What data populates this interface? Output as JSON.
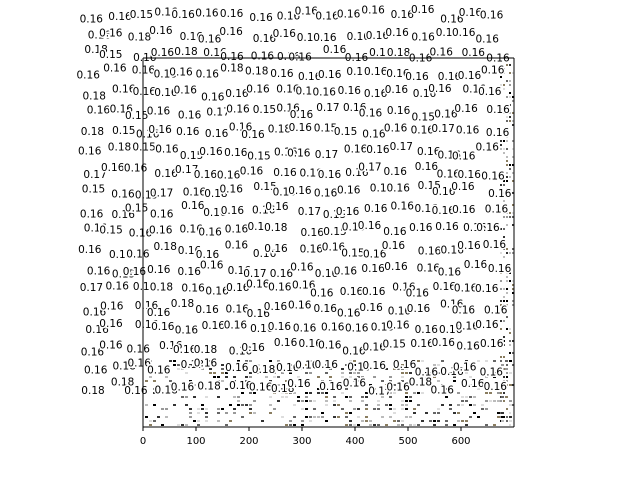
{
  "chart_data": {
    "type": "heatmap",
    "title": "",
    "xlabel": "",
    "ylabel": "",
    "xlim": [
      0,
      700
    ],
    "ylim": [
      0,
      700
    ],
    "x_ticks": [
      "0",
      "100",
      "200",
      "300",
      "400",
      "500",
      "600"
    ],
    "x_tick_values": [
      0,
      100,
      200,
      300,
      400,
      500,
      600
    ],
    "grid": false,
    "colormap": "grayscale",
    "label_values": [
      0.15,
      0.16,
      0.17,
      0.18
    ],
    "label_grid": {
      "columns": 18,
      "rows": 20,
      "values": [
        [
          0.16,
          0.16,
          0.15,
          0.16,
          0.16,
          0.16,
          0.16,
          0.16,
          0.16,
          0.16,
          0.16,
          0.16,
          0.16,
          0.16,
          0.16,
          0.16,
          0.16,
          0.16
        ],
        [
          0.16,
          0.16,
          0.18,
          0.16,
          0.16,
          0.16,
          0.16,
          0.16,
          0.16,
          0.16,
          0.16,
          0.16,
          0.16,
          0.16,
          0.16,
          0.16,
          0.16,
          0.16
        ],
        [
          0.18,
          0.15,
          0.16,
          0.16,
          0.18,
          0.16,
          0.16,
          0.16,
          0.16,
          0.16,
          0.16,
          0.16,
          0.16,
          0.18,
          0.16,
          0.16,
          0.16,
          0.16
        ],
        [
          0.16,
          0.16,
          0.16,
          0.18,
          0.16,
          0.16,
          0.18,
          0.18,
          0.16,
          0.16,
          0.16,
          0.16,
          0.16,
          0.16,
          0.16,
          0.16,
          0.16,
          0.16
        ],
        [
          0.18,
          0.16,
          0.16,
          0.16,
          0.16,
          0.16,
          0.16,
          0.16,
          0.16,
          0.16,
          0.16,
          0.16,
          0.16,
          0.16,
          0.16,
          0.16,
          0.16,
          0.16
        ],
        [
          0.16,
          0.16,
          0.15,
          0.16,
          0.16,
          0.17,
          0.16,
          0.15,
          0.16,
          0.16,
          0.17,
          0.16,
          0.16,
          0.16,
          0.15,
          0.16,
          0.16,
          0.16
        ],
        [
          0.18,
          0.15,
          0.16,
          0.16,
          0.16,
          0.16,
          0.16,
          0.16,
          0.18,
          0.16,
          0.15,
          0.15,
          0.16,
          0.16,
          0.16,
          0.17,
          0.16,
          0.16
        ],
        [
          0.16,
          0.18,
          0.15,
          0.16,
          0.15,
          0.16,
          0.16,
          0.15,
          0.16,
          0.16,
          0.17,
          0.16,
          0.16,
          0.17,
          0.16,
          0.16,
          0.16,
          0.16
        ],
        [
          0.17,
          0.16,
          0.16,
          0.16,
          0.17,
          0.16,
          0.16,
          0.16,
          0.16,
          0.18,
          0.16,
          0.16,
          0.17,
          0.16,
          0.16,
          0.16,
          0.16,
          0.16
        ],
        [
          0.15,
          0.16,
          0.15,
          0.17,
          0.16,
          0.18,
          0.16,
          0.15,
          0.16,
          0.16,
          0.16,
          0.16,
          0.16,
          0.16,
          0.15,
          0.16,
          0.16,
          0.16
        ],
        [
          0.16,
          0.16,
          0.15,
          0.16,
          0.16,
          0.16,
          0.16,
          0.16,
          0.16,
          0.17,
          0.15,
          0.16,
          0.16,
          0.16,
          0.16,
          0.16,
          0.16,
          0.16
        ],
        [
          0.16,
          0.15,
          0.16,
          0.16,
          0.16,
          0.16,
          0.16,
          0.16,
          0.18,
          0.16,
          0.15,
          0.16,
          0.16,
          0.16,
          0.16,
          0.16,
          0.16,
          0.16
        ],
        [
          0.16,
          0.15,
          0.16,
          0.18,
          0.16,
          0.16,
          0.16,
          0.16,
          0.16,
          0.16,
          0.16,
          0.15,
          0.16,
          0.16,
          0.16,
          0.16,
          0.16,
          0.16
        ],
        [
          0.16,
          0.15,
          0.16,
          0.16,
          0.16,
          0.16,
          0.16,
          0.17,
          0.16,
          0.16,
          0.16,
          0.16,
          0.16,
          0.16,
          0.16,
          0.16,
          0.16,
          0.16
        ],
        [
          0.17,
          0.16,
          0.16,
          0.18,
          0.16,
          0.16,
          0.16,
          0.16,
          0.16,
          0.16,
          0.16,
          0.16,
          0.16,
          0.16,
          0.16,
          0.16,
          0.16,
          0.16
        ],
        [
          0.16,
          0.16,
          0.16,
          0.16,
          0.18,
          0.16,
          0.16,
          0.16,
          0.16,
          0.16,
          0.16,
          0.16,
          0.16,
          0.16,
          0.16,
          0.16,
          0.16,
          0.16
        ],
        [
          0.16,
          0.16,
          0.16,
          0.16,
          0.16,
          0.16,
          0.16,
          0.16,
          0.16,
          0.16,
          0.16,
          0.16,
          0.16,
          0.16,
          0.16,
          0.16,
          0.16,
          0.16
        ],
        [
          0.16,
          0.16,
          0.16,
          0.16,
          0.16,
          0.18,
          0.16,
          0.16,
          0.16,
          0.16,
          0.16,
          0.16,
          0.16,
          0.15,
          0.16,
          0.16,
          0.16,
          0.16
        ],
        [
          0.16,
          0.18,
          0.16,
          0.16,
          0.18,
          0.16,
          0.16,
          0.18,
          0.16,
          0.16,
          0.16,
          0.18,
          0.16,
          0.16,
          0.16,
          0.16,
          0.16,
          0.16
        ],
        [
          0.18,
          0.18,
          0.16,
          0.18,
          0.16,
          0.18,
          0.16,
          0.16,
          0.18,
          0.16,
          0.16,
          0.16,
          0.17,
          0.16,
          0.18,
          0.16,
          0.16,
          0.16
        ]
      ]
    }
  }
}
